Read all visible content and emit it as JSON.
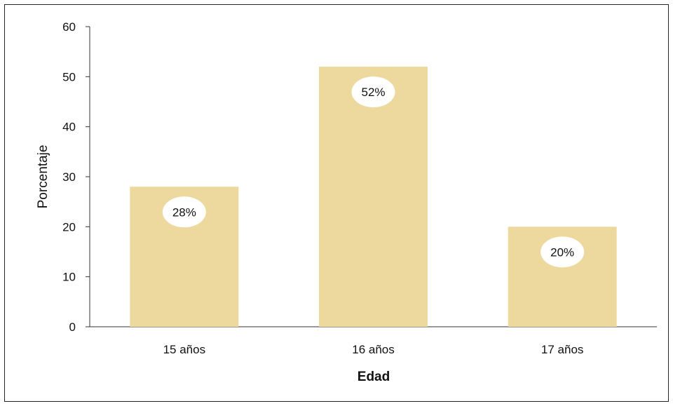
{
  "chart_data": {
    "type": "bar",
    "categories": [
      "15 años",
      "16 años",
      "17 años"
    ],
    "values": [
      28,
      52,
      20
    ],
    "data_labels": [
      "28%",
      "52%",
      "20%"
    ],
    "xlabel": "Edad",
    "ylabel": "Porcentaje",
    "ylim": [
      0,
      60
    ],
    "yticks": [
      0,
      10,
      20,
      30,
      40,
      50,
      60
    ],
    "bar_color": "#EDD89D",
    "label_bubble_color": "#ffffff",
    "grid": false,
    "legend": "none"
  }
}
